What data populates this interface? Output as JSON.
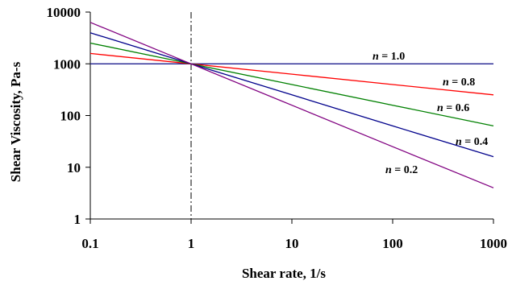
{
  "chart_data": {
    "type": "line",
    "xlabel": "Shear rate, 1/s",
    "ylabel": "Shear Viscosity, Pa-s",
    "x_scale": "log",
    "y_scale": "log",
    "xlim": [
      0.1,
      1000
    ],
    "ylim": [
      1,
      10000
    ],
    "x_ticks": [
      "0.1",
      "1",
      "10",
      "100",
      "1000"
    ],
    "y_ticks": [
      "1",
      "10",
      "100",
      "1000",
      "10000"
    ],
    "grid": false,
    "reference_line": {
      "x": 1,
      "style": "dash-dot"
    },
    "series": [
      {
        "name": "n = 1.0",
        "n_symbol": "n",
        "n_value": "= 1.0",
        "color": "#1f1f8f",
        "x": [
          0.1,
          1,
          10,
          100,
          1000
        ],
        "y": [
          1000,
          1000,
          1000,
          1000,
          1000
        ]
      },
      {
        "name": "n = 0.8",
        "n_symbol": "n",
        "n_value": "= 0.8",
        "color": "#ff0000",
        "x": [
          0.1,
          1,
          10,
          100,
          1000
        ],
        "y": [
          1585,
          1000,
          631,
          398,
          251
        ]
      },
      {
        "name": "n = 0.6",
        "n_symbol": "n",
        "n_value": "= 0.6",
        "color": "#008000",
        "x": [
          0.1,
          1,
          10,
          100,
          1000
        ],
        "y": [
          2512,
          1000,
          398,
          158,
          63
        ]
      },
      {
        "name": "n = 0.4",
        "n_symbol": "n",
        "n_value": "= 0.4",
        "color": "#00008b",
        "x": [
          0.1,
          1,
          10,
          100,
          1000
        ],
        "y": [
          3981,
          1000,
          251,
          63,
          16
        ]
      },
      {
        "name": "n = 0.2",
        "n_symbol": "n",
        "n_value": "= 0.2",
        "color": "#800080",
        "x": [
          0.1,
          1,
          10,
          100,
          1000
        ],
        "y": [
          6310,
          1000,
          158,
          25,
          4
        ]
      }
    ]
  }
}
